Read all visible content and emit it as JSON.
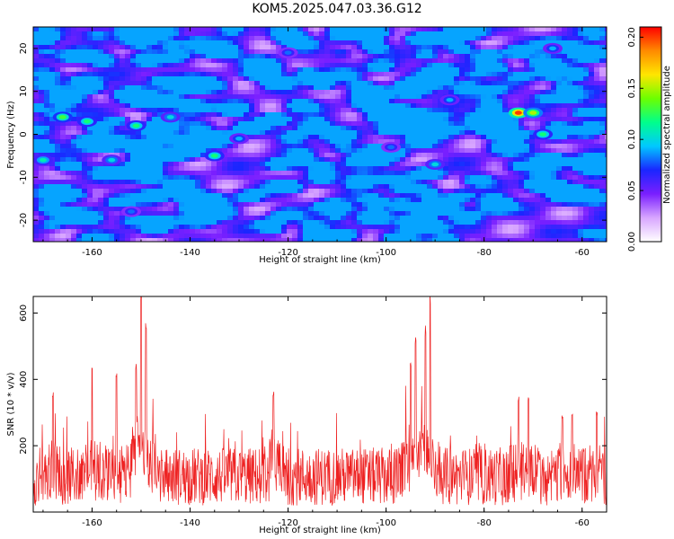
{
  "title": "KOM5.2025.047.03.36.G12",
  "chart_data": [
    {
      "type": "heatmap",
      "xlabel": "Height of straight line (km)",
      "ylabel": "Frequency (Hz)",
      "xlim": [
        -172,
        -55
      ],
      "ylim": [
        -25,
        25
      ],
      "xticks": [
        -160,
        -140,
        -120,
        -100,
        -80,
        -60
      ],
      "yticks": [
        -20,
        -10,
        0,
        10,
        20
      ],
      "colorbar": {
        "label": "Normalized spectral amplitude",
        "range": [
          0,
          0.21
        ],
        "ticks": [
          "0.00",
          "0.05",
          "0.10",
          "0.15",
          "0.20"
        ],
        "colors": [
          "#ffffff",
          "#d8a6ff",
          "#7a1fff",
          "#1a26ff",
          "#00c8ff",
          "#00ff8c",
          "#6cff00",
          "#ffe600",
          "#ff8a00",
          "#ff0000"
        ]
      },
      "hotspots": [
        {
          "x": -166,
          "y": 4,
          "value": 0.13
        },
        {
          "x": -161,
          "y": 3,
          "value": 0.12
        },
        {
          "x": -151,
          "y": 2,
          "value": 0.12
        },
        {
          "x": -144,
          "y": 4,
          "value": 0.1
        },
        {
          "x": -156,
          "y": -6,
          "value": 0.1
        },
        {
          "x": -135,
          "y": -5,
          "value": 0.12
        },
        {
          "x": -130,
          "y": -1,
          "value": 0.09
        },
        {
          "x": -170,
          "y": -6,
          "value": 0.11
        },
        {
          "x": -73,
          "y": 5,
          "value": 0.2
        },
        {
          "x": -70,
          "y": 5,
          "value": 0.15
        },
        {
          "x": -68,
          "y": 0,
          "value": 0.12
        },
        {
          "x": -90,
          "y": -7,
          "value": 0.1
        },
        {
          "x": -87,
          "y": 8,
          "value": 0.09
        },
        {
          "x": -99,
          "y": -3,
          "value": 0.08
        },
        {
          "x": -152,
          "y": -18,
          "value": 0.08
        },
        {
          "x": -120,
          "y": 19,
          "value": 0.08
        },
        {
          "x": -66,
          "y": 20,
          "value": 0.09
        }
      ]
    },
    {
      "type": "line",
      "xlabel": "Height of straight line (km)",
      "ylabel": "SNR (10 * v/v)",
      "xlim": [
        -172,
        -55
      ],
      "ylim": [
        0,
        650
      ],
      "xticks": [
        -160,
        -140,
        -120,
        -100,
        -80,
        -60
      ],
      "yticks": [
        200,
        400,
        600
      ],
      "color": "#ee2222",
      "baseline_mean": 130,
      "peaks": [
        {
          "x": -150,
          "y": 650
        },
        {
          "x": -149,
          "y": 570
        },
        {
          "x": -155,
          "y": 440
        },
        {
          "x": -151,
          "y": 450
        },
        {
          "x": -160,
          "y": 440
        },
        {
          "x": -91,
          "y": 650
        },
        {
          "x": -92,
          "y": 560
        },
        {
          "x": -94,
          "y": 510
        },
        {
          "x": -95,
          "y": 460
        },
        {
          "x": -168,
          "y": 370
        },
        {
          "x": -123,
          "y": 380
        },
        {
          "x": -73,
          "y": 360
        },
        {
          "x": -71,
          "y": 350
        },
        {
          "x": -64,
          "y": 300
        },
        {
          "x": -62,
          "y": 310
        },
        {
          "x": -57,
          "y": 310
        }
      ]
    }
  ]
}
